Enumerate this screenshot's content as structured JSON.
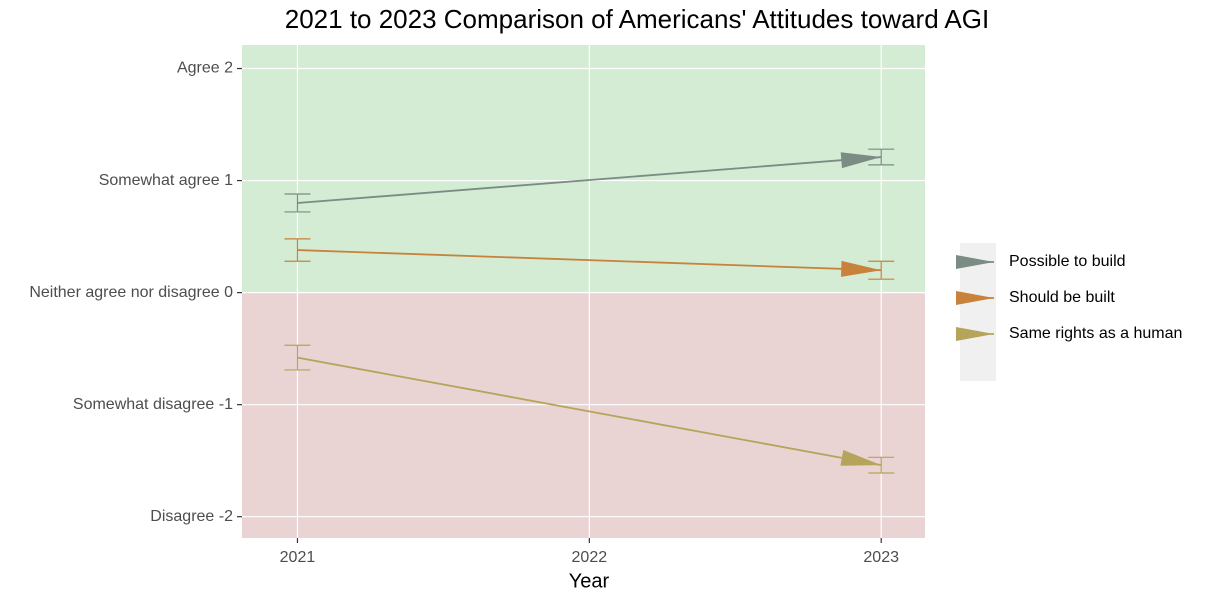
{
  "chart_data": {
    "type": "line",
    "title": "2021 to 2023 Comparison of Americans' Attitudes toward AGI",
    "x_label": "Year",
    "x": [
      2021,
      2023
    ],
    "xlim": [
      2020.81,
      2023.15
    ],
    "xticks": [
      2021,
      2022,
      2023
    ],
    "ylim": [
      -2.19,
      2.21
    ],
    "yticks": [
      {
        "value": -2,
        "label": "Disagree -2"
      },
      {
        "value": -1,
        "label": "Somewhat disagree -1"
      },
      {
        "value": 0,
        "label": "Neither agree nor disagree 0"
      },
      {
        "value": 1,
        "label": "Somewhat agree 1"
      },
      {
        "value": 2,
        "label": "Agree 2"
      }
    ],
    "grid": true,
    "legend": "right",
    "background_colors": {
      "positive": "#d4ebd4",
      "negative": "#ead3d3"
    },
    "series": [
      {
        "name": "Possible to build",
        "color": "#7b8c84",
        "values": [
          0.8,
          1.21
        ],
        "errors": [
          0.08,
          0.07
        ]
      },
      {
        "name": "Should be built",
        "color": "#c8823c",
        "values": [
          0.38,
          0.2
        ],
        "errors": [
          0.1,
          0.08
        ]
      },
      {
        "name": "Same rights as a human",
        "color": "#b5a45a",
        "values": [
          -0.58,
          -1.54
        ],
        "errors": [
          0.11,
          0.07
        ]
      }
    ]
  }
}
